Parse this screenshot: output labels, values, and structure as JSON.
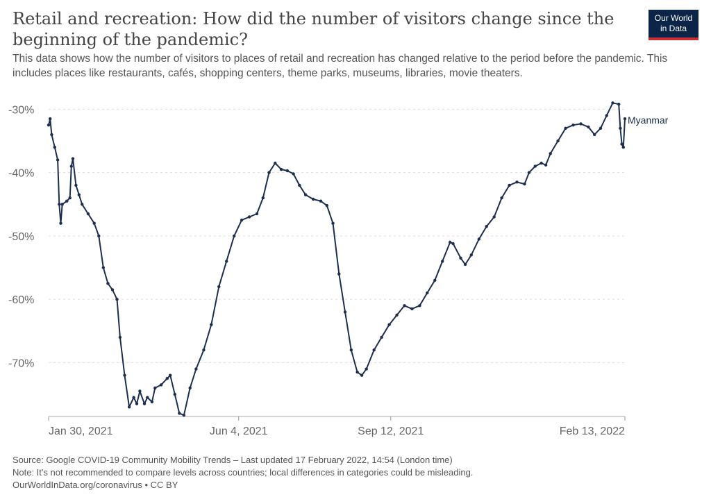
{
  "header": {
    "title": "Retail and recreation: How did the number of visitors change since the beginning of the pandemic?",
    "subtitle": "This data shows how the number of visitors to places of retail and recreation has changed relative to the period before the pandemic. This includes places like restaurants, cafés, shopping centers, theme parks, museums, libraries, movie theaters.",
    "logo_line1": "Our World",
    "logo_line2": "in Data"
  },
  "footer": {
    "source": "Source: Google COVID-19 Community Mobility Trends – Last updated 17 February 2022, 14:54 (London time)",
    "note": "Note: It's not recommended to compare levels across countries; local differences in categories could be misleading.",
    "credit": "OurWorldInData.org/coronavirus • CC BY"
  },
  "colors": {
    "line": "#1d2e4f",
    "grid": "#dddddd",
    "axis_text": "#666666",
    "logo_bg": "#0b2447",
    "logo_accent": "#c72f36"
  },
  "chart_data": {
    "type": "line",
    "y_ticks": [
      -30,
      -40,
      -50,
      -60,
      -70
    ],
    "y_tick_labels": [
      "-30%",
      "-40%",
      "-50%",
      "-60%",
      "-70%"
    ],
    "ylim": [
      -78.5,
      -27
    ],
    "x_ticks": [
      "2021-01-30",
      "2021-06-04",
      "2021-09-12",
      "2022-02-13"
    ],
    "x_tick_labels": [
      "Jan 30, 2021",
      "Jun 4, 2021",
      "Sep 12, 2021",
      "Feb 13, 2022"
    ],
    "xlim": [
      "2021-01-30",
      "2022-02-13"
    ],
    "grid": "horizontal dotted",
    "series": [
      {
        "name": "Myanmar",
        "points": [
          [
            "2021-01-30",
            -32.5
          ],
          [
            "2021-01-31",
            -31.5
          ],
          [
            "2021-02-01",
            -34
          ],
          [
            "2021-02-03",
            -36
          ],
          [
            "2021-02-05",
            -38
          ],
          [
            "2021-02-06",
            -45
          ],
          [
            "2021-02-07",
            -48
          ],
          [
            "2021-02-08",
            -45
          ],
          [
            "2021-02-11",
            -44.5
          ],
          [
            "2021-02-13",
            -44
          ],
          [
            "2021-02-14",
            -39
          ],
          [
            "2021-02-15",
            -37.8
          ],
          [
            "2021-02-17",
            -42
          ],
          [
            "2021-02-19",
            -43.5
          ],
          [
            "2021-02-21",
            -45
          ],
          [
            "2021-02-25",
            -46.5
          ],
          [
            "2021-03-01",
            -48
          ],
          [
            "2021-03-04",
            -50
          ],
          [
            "2021-03-07",
            -55
          ],
          [
            "2021-03-10",
            -57.5
          ],
          [
            "2021-03-13",
            -58.5
          ],
          [
            "2021-03-16",
            -60
          ],
          [
            "2021-03-18",
            -66
          ],
          [
            "2021-03-21",
            -72
          ],
          [
            "2021-03-24",
            -77
          ],
          [
            "2021-03-27",
            -75.5
          ],
          [
            "2021-03-29",
            -76.5
          ],
          [
            "2021-03-31",
            -74.5
          ],
          [
            "2021-04-03",
            -76.5
          ],
          [
            "2021-04-05",
            -75.5
          ],
          [
            "2021-04-08",
            -76.2
          ],
          [
            "2021-04-10",
            -74
          ],
          [
            "2021-04-14",
            -73.5
          ],
          [
            "2021-04-18",
            -72.5
          ],
          [
            "2021-04-20",
            -72
          ],
          [
            "2021-04-23",
            -75
          ],
          [
            "2021-04-26",
            -78
          ],
          [
            "2021-04-29",
            -78.3
          ],
          [
            "2021-05-03",
            -74
          ],
          [
            "2021-05-07",
            -71
          ],
          [
            "2021-05-12",
            -68
          ],
          [
            "2021-05-17",
            -64
          ],
          [
            "2021-05-22",
            -58
          ],
          [
            "2021-05-27",
            -54
          ],
          [
            "2021-06-01",
            -50
          ],
          [
            "2021-06-06",
            -47.5
          ],
          [
            "2021-06-11",
            -47
          ],
          [
            "2021-06-16",
            -46.5
          ],
          [
            "2021-06-20",
            -44
          ],
          [
            "2021-06-24",
            -40
          ],
          [
            "2021-06-28",
            -38.5
          ],
          [
            "2021-07-02",
            -39.5
          ],
          [
            "2021-07-06",
            -39.7
          ],
          [
            "2021-07-10",
            -40.2
          ],
          [
            "2021-07-14",
            -42
          ],
          [
            "2021-07-18",
            -43.5
          ],
          [
            "2021-07-23",
            -44.2
          ],
          [
            "2021-07-28",
            -44.5
          ],
          [
            "2021-08-01",
            -45.2
          ],
          [
            "2021-08-05",
            -48
          ],
          [
            "2021-08-09",
            -56
          ],
          [
            "2021-08-13",
            -62
          ],
          [
            "2021-08-17",
            -68
          ],
          [
            "2021-08-21",
            -71.5
          ],
          [
            "2021-08-24",
            -72
          ],
          [
            "2021-08-27",
            -71
          ],
          [
            "2021-09-01",
            -68
          ],
          [
            "2021-09-06",
            -66
          ],
          [
            "2021-09-11",
            -64
          ],
          [
            "2021-09-16",
            -62.5
          ],
          [
            "2021-09-21",
            -61
          ],
          [
            "2021-09-26",
            -61.5
          ],
          [
            "2021-10-01",
            -61
          ],
          [
            "2021-10-06",
            -59
          ],
          [
            "2021-10-11",
            -57
          ],
          [
            "2021-10-16",
            -54
          ],
          [
            "2021-10-21",
            -51
          ],
          [
            "2021-10-23",
            -51.2
          ],
          [
            "2021-10-28",
            -53.5
          ],
          [
            "2021-10-31",
            -54.5
          ],
          [
            "2021-11-04",
            -53
          ],
          [
            "2021-11-09",
            -50.5
          ],
          [
            "2021-11-14",
            -48.5
          ],
          [
            "2021-11-19",
            -47
          ],
          [
            "2021-11-24",
            -44
          ],
          [
            "2021-11-29",
            -42
          ],
          [
            "2021-12-04",
            -41.5
          ],
          [
            "2021-12-09",
            -41.8
          ],
          [
            "2021-12-12",
            -40
          ],
          [
            "2021-12-16",
            -39
          ],
          [
            "2021-12-20",
            -38.5
          ],
          [
            "2021-12-23",
            -38.8
          ],
          [
            "2021-12-26",
            -37
          ],
          [
            "2021-12-31",
            -35
          ],
          [
            "2022-01-05",
            -33
          ],
          [
            "2022-01-10",
            -32.5
          ],
          [
            "2022-01-15",
            -32.3
          ],
          [
            "2022-01-20",
            -32.8
          ],
          [
            "2022-01-24",
            -34
          ],
          [
            "2022-01-28",
            -33
          ],
          [
            "2022-02-01",
            -31
          ],
          [
            "2022-02-05",
            -29
          ],
          [
            "2022-02-09",
            -29.2
          ],
          [
            "2022-02-10",
            -33
          ],
          [
            "2022-02-11",
            -35.5
          ],
          [
            "2022-02-12",
            -36
          ],
          [
            "2022-02-13",
            -31.5
          ]
        ]
      }
    ],
    "series_label_placement": "right end of line"
  }
}
